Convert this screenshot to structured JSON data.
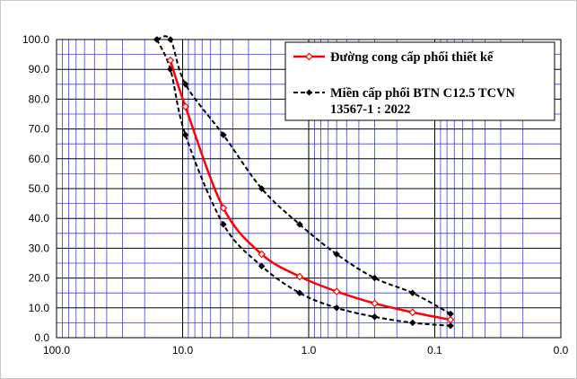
{
  "chart_data": {
    "type": "line",
    "x_scale": "log",
    "x_reversed": true,
    "x_ticks": [
      100,
      10,
      1,
      0.1,
      0.01
    ],
    "x_tick_labels": [
      "100.0",
      "10.0",
      "1.0",
      "0.1",
      "0.0"
    ],
    "ylim": [
      0,
      100
    ],
    "y_ticks": [
      0,
      10,
      20,
      30,
      40,
      50,
      60,
      70,
      80,
      90,
      100
    ],
    "y_tick_labels": [
      "0.0",
      "10.0",
      "20.0",
      "30.0",
      "40.0",
      "50.0",
      "60.0",
      "70.0",
      "80.0",
      "90.0",
      "100.0"
    ],
    "grid": true,
    "legend_position": "top-right",
    "series": [
      {
        "name": "Đường cong cấp phối thiết kế",
        "color": "#ff0000",
        "style": "solid",
        "marker": "open-diamond",
        "points": [
          {
            "x": 12.5,
            "y": 93.0
          },
          {
            "x": 9.5,
            "y": 77.5
          },
          {
            "x": 4.75,
            "y": 43.5
          },
          {
            "x": 2.36,
            "y": 28.0
          },
          {
            "x": 1.18,
            "y": 20.5
          },
          {
            "x": 0.6,
            "y": 15.5
          },
          {
            "x": 0.3,
            "y": 11.5
          },
          {
            "x": 0.15,
            "y": 8.5
          },
          {
            "x": 0.075,
            "y": 6.0
          }
        ]
      },
      {
        "name": "Miền cấp phối BTN C12.5 TCVN 13567-1 : 2022",
        "color": "#000000",
        "style": "dashed",
        "marker": "filled-diamond",
        "points": [
          {
            "x": 16,
            "y": 100
          },
          {
            "x": 12.5,
            "y": 100
          },
          {
            "x": 9.5,
            "y": 85
          },
          {
            "x": 4.75,
            "y": 68
          },
          {
            "x": 2.36,
            "y": 50
          },
          {
            "x": 1.18,
            "y": 38
          },
          {
            "x": 0.6,
            "y": 28
          },
          {
            "x": 0.3,
            "y": 20
          },
          {
            "x": 0.15,
            "y": 15
          },
          {
            "x": 0.075,
            "y": 8
          }
        ]
      },
      {
        "name": "",
        "color": "#000000",
        "style": "dashed",
        "marker": "filled-diamond",
        "points": [
          {
            "x": 16,
            "y": 100
          },
          {
            "x": 12.5,
            "y": 90
          },
          {
            "x": 9.5,
            "y": 68
          },
          {
            "x": 4.75,
            "y": 38
          },
          {
            "x": 2.36,
            "y": 24
          },
          {
            "x": 1.18,
            "y": 15
          },
          {
            "x": 0.6,
            "y": 10
          },
          {
            "x": 0.3,
            "y": 7
          },
          {
            "x": 0.15,
            "y": 5
          },
          {
            "x": 0.075,
            "y": 4
          }
        ]
      }
    ]
  },
  "legend": {
    "design_curve": "Đường cong cấp phối thiết kế",
    "envelope_line1": "Miền cấp phối BTN C12.5 TCVN",
    "envelope_line2": "13567-1 : 2022"
  }
}
